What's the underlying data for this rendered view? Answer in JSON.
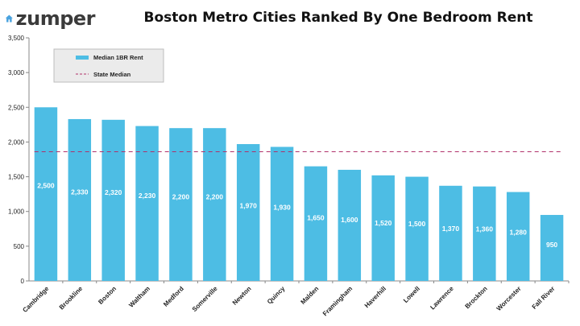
{
  "brand": {
    "name": "zumper",
    "accent": "#4aa3df"
  },
  "chart_data": {
    "type": "bar",
    "title": "Boston Metro Cities Ranked By One Bedroom Rent",
    "categories": [
      "Cambridge",
      "Brookline",
      "Boston",
      "Waltham",
      "Medford",
      "Somerville",
      "Newton",
      "Quincy",
      "Malden",
      "Framingham",
      "Haverhill",
      "Lowell",
      "Lawrence",
      "Brockton",
      "Worcester",
      "Fall River"
    ],
    "series": [
      {
        "name": "Median 1BR Rent",
        "values": [
          2500,
          2330,
          2320,
          2230,
          2200,
          2200,
          1970,
          1930,
          1650,
          1600,
          1520,
          1500,
          1370,
          1360,
          1280,
          950
        ],
        "color": "#4dbde4"
      }
    ],
    "data_labels": [
      "2,500",
      "2,330",
      "2,320",
      "2,230",
      "2,200",
      "2,200",
      "1,970",
      "1,930",
      "1,650",
      "1,600",
      "1,520",
      "1,500",
      "1,370",
      "1,360",
      "1,280",
      "950"
    ],
    "reference_line": {
      "name": "State Median",
      "value": 1860,
      "color": "#b0306a"
    },
    "yticks": [
      "0",
      "500",
      "1,000",
      "1,500",
      "2,000",
      "2,500",
      "3,000",
      "3,500"
    ],
    "ylim": [
      0,
      3500
    ],
    "grid": false,
    "legend_position": "top-left"
  }
}
